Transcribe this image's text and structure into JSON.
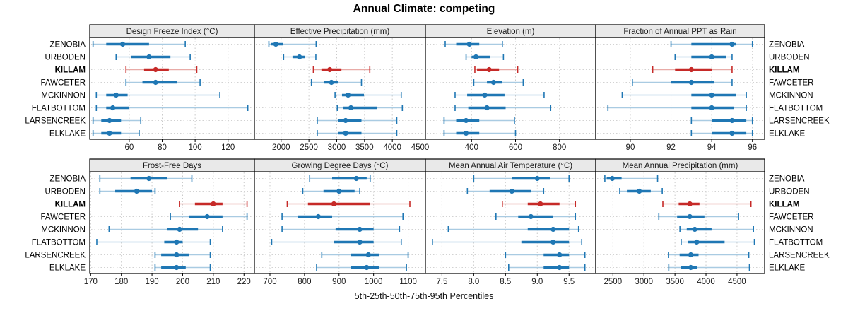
{
  "title": "Annual Climate: competing",
  "xlabel": "5th-25th-50th-75th-95th Percentiles",
  "colors": {
    "series": "#1f77b4",
    "series_light": "#a9cbe2",
    "highlight": "#c62a28",
    "highlight_light": "#e8aba7",
    "strip_bg": "#e9e9e9",
    "panel_border": "#000000",
    "gridline": "#c9c9c9",
    "row_line": "#d2d2d2",
    "tick_text": "#1a1a1a"
  },
  "chart_data": {
    "type": "dot-interval-trellis",
    "statistic": "5th, 25th, 50th, 75th, 95th percentiles per site",
    "legend_position": "none",
    "grid": "dotted",
    "sites": [
      "ZENOBIA",
      "URBODEN",
      "KILLAM",
      "FAWCETER",
      "MCKINNON",
      "FLATBOTTOM",
      "LARSENCREEK",
      "ELKLAKE"
    ],
    "highlight_site": "KILLAM",
    "panels": [
      {
        "title": "Design Freeze Index (°C)",
        "grid_row": 0,
        "grid_col": 0,
        "xlim": [
          36,
          136
        ],
        "ticks": [
          60,
          80,
          100,
          120
        ],
        "tick_labels": [
          "60",
          "80",
          "100",
          "120"
        ],
        "series": [
          [
            38,
            46,
            56,
            72,
            94
          ],
          [
            52,
            61,
            72,
            85,
            97
          ],
          [
            58,
            69,
            76,
            84,
            101
          ],
          [
            58,
            68,
            76,
            89,
            103
          ],
          [
            40,
            46,
            52,
            59,
            115
          ],
          [
            40,
            46,
            50,
            60,
            132
          ],
          [
            38,
            43,
            48,
            55,
            67
          ],
          [
            38,
            43,
            48,
            55,
            66
          ]
        ]
      },
      {
        "title": "Effective Precipitation (mm)",
        "grid_row": 0,
        "grid_col": 1,
        "xlim": [
          1520,
          4595
        ],
        "ticks": [
          2000,
          2500,
          3000,
          3500,
          4000,
          4500
        ],
        "tick_labels": [
          "2000",
          "2500",
          "3000",
          "3500",
          "4000",
          "4500"
        ],
        "series": [
          [
            1780,
            1825,
            1905,
            2040,
            2630
          ],
          [
            2045,
            2205,
            2330,
            2430,
            2625
          ],
          [
            2580,
            2725,
            2875,
            3085,
            3595
          ],
          [
            2545,
            2765,
            2905,
            3030,
            3445
          ],
          [
            2970,
            3095,
            3205,
            3490,
            4160
          ],
          [
            3010,
            3120,
            3255,
            3725,
            4180
          ],
          [
            2650,
            3030,
            3160,
            3445,
            4080
          ],
          [
            2650,
            3030,
            3160,
            3445,
            4080
          ]
        ]
      },
      {
        "title": "Elevation (m)",
        "grid_row": 0,
        "grid_col": 2,
        "xlim": [
          190,
          965
        ],
        "ticks": [
          400,
          600,
          800
        ],
        "tick_labels": [
          "400",
          "600",
          "800"
        ],
        "series": [
          [
            280,
            330,
            390,
            435,
            540
          ],
          [
            375,
            400,
            420,
            485,
            545
          ],
          [
            415,
            425,
            480,
            525,
            610
          ],
          [
            410,
            470,
            500,
            540,
            635
          ],
          [
            325,
            380,
            460,
            550,
            730
          ],
          [
            325,
            385,
            470,
            555,
            760
          ],
          [
            275,
            330,
            375,
            435,
            595
          ],
          [
            275,
            330,
            375,
            435,
            600
          ]
        ]
      },
      {
        "title": "Fraction of Annual PPT as Rain",
        "grid_row": 0,
        "grid_col": 3,
        "xlim": [
          88.3,
          96.6
        ],
        "ticks": [
          90,
          92,
          94,
          96
        ],
        "tick_labels": [
          "90",
          "92",
          "94",
          "96"
        ],
        "series": [
          [
            92.0,
            93.0,
            95.0,
            95.2,
            96.0
          ],
          [
            92.2,
            93.0,
            94.0,
            94.7,
            95.0
          ],
          [
            91.1,
            92.2,
            93.0,
            94.0,
            95.0
          ],
          [
            90.1,
            92.0,
            93.0,
            94.1,
            95.0
          ],
          [
            89.6,
            93.0,
            94.0,
            95.2,
            95.7
          ],
          [
            88.9,
            93.0,
            94.0,
            95.1,
            95.7
          ],
          [
            93.0,
            94.0,
            95.0,
            95.7,
            96.0
          ],
          [
            93.0,
            94.0,
            95.0,
            95.7,
            96.0
          ]
        ]
      },
      {
        "title": "Frost-Free Days",
        "grid_row": 1,
        "grid_col": 0,
        "xlim": [
          169.7,
          223.4
        ],
        "ticks": [
          170,
          180,
          190,
          200,
          210,
          220
        ],
        "tick_labels": [
          "170",
          "180",
          "190",
          "200",
          "210",
          "220"
        ],
        "series": [
          [
            173,
            183,
            189,
            195,
            203
          ],
          [
            173,
            178,
            185,
            190,
            191
          ],
          [
            199,
            204,
            210,
            213,
            221
          ],
          [
            196,
            202,
            208,
            213,
            221
          ],
          [
            176,
            195,
            199,
            205,
            213
          ],
          [
            172,
            194,
            198,
            200,
            209
          ],
          [
            191,
            193,
            198,
            202,
            209
          ],
          [
            191,
            193,
            198,
            201,
            209
          ]
        ]
      },
      {
        "title": "Growing Degree Days (°C)",
        "grid_row": 1,
        "grid_col": 1,
        "xlim": [
          655,
          1150
        ],
        "ticks": [
          700,
          800,
          900,
          1000,
          1100
        ],
        "tick_labels": [
          "700",
          "800",
          "900",
          "1000",
          "1100"
        ],
        "series": [
          [
            815,
            880,
            950,
            980,
            990
          ],
          [
            795,
            855,
            900,
            945,
            960
          ],
          [
            750,
            810,
            885,
            990,
            1105
          ],
          [
            735,
            780,
            840,
            880,
            1085
          ],
          [
            735,
            890,
            960,
            1000,
            1075
          ],
          [
            705,
            885,
            960,
            1000,
            1080
          ],
          [
            850,
            935,
            985,
            1015,
            1100
          ],
          [
            835,
            935,
            980,
            1015,
            1095
          ]
        ]
      },
      {
        "title": "Mean Annual Air Temperature (°C)",
        "grid_row": 1,
        "grid_col": 2,
        "xlim": [
          7.24,
          9.92
        ],
        "ticks": [
          7.5,
          8.0,
          8.5,
          9.0,
          9.5
        ],
        "tick_labels": [
          "7.5",
          "8.0",
          "8.5",
          "9.0",
          "9.5"
        ],
        "series": [
          [
            8.0,
            8.6,
            9.0,
            9.2,
            9.5
          ],
          [
            7.9,
            8.25,
            8.6,
            8.9,
            9.1
          ],
          [
            8.45,
            8.85,
            9.05,
            9.35,
            9.6
          ],
          [
            8.35,
            8.7,
            8.9,
            9.25,
            9.6
          ],
          [
            7.6,
            8.85,
            9.25,
            9.5,
            9.65
          ],
          [
            7.35,
            8.75,
            9.25,
            9.5,
            9.7
          ],
          [
            8.5,
            9.1,
            9.35,
            9.5,
            9.75
          ],
          [
            8.55,
            9.1,
            9.35,
            9.5,
            9.75
          ]
        ]
      },
      {
        "title": "Mean Annual Precipitation (mm)",
        "grid_row": 1,
        "grid_col": 3,
        "xlim": [
          2223,
          4945
        ],
        "ticks": [
          2500,
          3000,
          3500,
          4000,
          4500
        ],
        "tick_labels": [
          "2500",
          "3000",
          "3500",
          "4000",
          "4500"
        ],
        "series": [
          [
            2370,
            2400,
            2490,
            2640,
            3220
          ],
          [
            2610,
            2725,
            2925,
            3110,
            3295
          ],
          [
            3305,
            3560,
            3740,
            3895,
            4725
          ],
          [
            3240,
            3535,
            3740,
            3975,
            4525
          ],
          [
            3580,
            3690,
            3820,
            4090,
            4765
          ],
          [
            3600,
            3705,
            3850,
            4300,
            4780
          ],
          [
            3395,
            3575,
            3755,
            3880,
            4690
          ],
          [
            3400,
            3590,
            3755,
            3860,
            4700
          ]
        ]
      }
    ]
  }
}
